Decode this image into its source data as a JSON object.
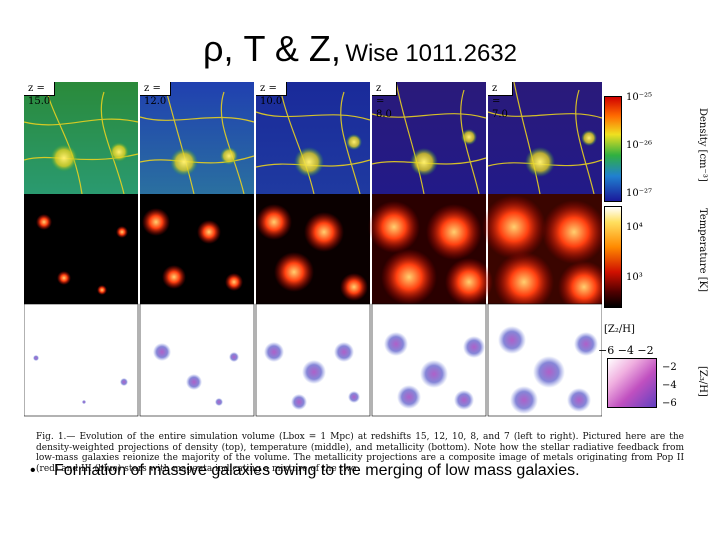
{
  "slide": {
    "title_main": "ρ, T & Z,",
    "title_sub": "Wise 1011.2632"
  },
  "figure": {
    "redshift_labels": [
      "z = 15.0",
      "z = 12.0",
      "z = 10.0",
      "z = 8.0",
      "z = 7.0"
    ],
    "density_bar": {
      "label": "Density [cm⁻³]",
      "ticks": [
        "10⁻²⁵",
        "10⁻²⁶",
        "10⁻²⁷"
      ]
    },
    "temperature_bar": {
      "label": "Temperature [K]",
      "ticks": [
        "10⁴",
        "10³"
      ]
    },
    "metallicity_key": {
      "z2_label": "[Z₂/H]",
      "z2_ticks": "−6 −4 −2",
      "z3_label": "[Z₃/H]",
      "z3_ticks": [
        "−2",
        "−4",
        "−6"
      ]
    },
    "caption": "Fig. 1.— Evolution of the entire simulation volume (Lbox = 1 Mpc) at redshifts 15, 12, 10, 8, and 7 (left to right). Pictured here are the density-weighted projections of density (top), temperature (middle), and metallicity (bottom). Note how the stellar radiative feedback from low-mass galaxies reionize the majority of the volume. The metallicity projections are a composite image of metals originating from Pop II (red) and III (blue) stars with magenta indicating a mixture of the two."
  },
  "bullets": [
    "Formation of massive galaxies owing to the merging of low mass galaxies."
  ],
  "colors": {
    "density_low": "#1a2a9a",
    "density_high": "#f0e020",
    "temperature_low": "#000000",
    "temperature_high": "#ff3010",
    "pop2": "#d0206a",
    "pop3": "#3040c0",
    "mixture": "#b050c0"
  }
}
